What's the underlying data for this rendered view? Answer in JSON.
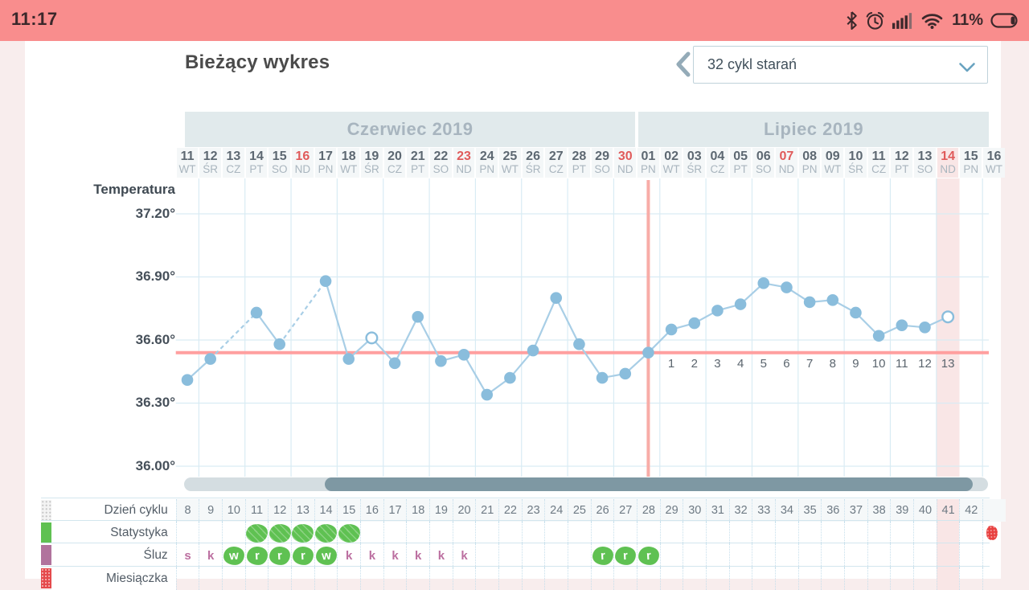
{
  "status_bar": {
    "time": "11:17",
    "battery_percent": "11%",
    "icons": [
      "bluetooth-icon",
      "alarm-icon",
      "signal-strength-icon",
      "wifi-icon",
      "battery-icon"
    ],
    "bg_color": "#f98d8d"
  },
  "header": {
    "title": "Bieżący wykres",
    "back_button": "chevron-left",
    "cycle_selector": {
      "value": "32 cykl starań",
      "icon": "chevron-down-icon"
    }
  },
  "axis": {
    "label": "Temperatura",
    "ticks": [
      "37.20°",
      "36.90°",
      "36.60°",
      "36.30°",
      "36.00°"
    ],
    "tick_values": [
      37.2,
      36.9,
      36.6,
      36.3,
      36.0
    ]
  },
  "chart_data": {
    "type": "line",
    "title": "Bieżący wykres",
    "ylabel": "Temperatura",
    "ylim": [
      36.0,
      37.37
    ],
    "grid": true,
    "coverline_temp": 36.54,
    "ovulation_col": 20,
    "today_col": 33,
    "months": [
      {
        "label": "Czerwiec 2019",
        "start_col": 0,
        "end_col": 19
      },
      {
        "label": "Lipiec 2019",
        "start_col": 20,
        "end_col": 35
      }
    ],
    "columns": [
      {
        "date": "11",
        "dow": "WT",
        "cycle_day": 8,
        "temp": 36.41,
        "mucus": {
          "letter": "s",
          "green": false
        }
      },
      {
        "date": "12",
        "dow": "ŚR",
        "cycle_day": 9,
        "temp": 36.51,
        "mucus": {
          "letter": "k",
          "green": false
        }
      },
      {
        "date": "13",
        "dow": "CZ",
        "cycle_day": 10,
        "temp": null,
        "mucus": {
          "letter": "w",
          "green": true
        }
      },
      {
        "date": "14",
        "dow": "PT",
        "cycle_day": 11,
        "temp": 36.73,
        "stat": "flower",
        "mucus": {
          "letter": "r",
          "green": true
        }
      },
      {
        "date": "15",
        "dow": "SO",
        "cycle_day": 12,
        "temp": 36.58,
        "stat": "flower",
        "mucus": {
          "letter": "r",
          "green": true
        }
      },
      {
        "date": "16",
        "dow": "ND",
        "sun": true,
        "cycle_day": 13,
        "temp": null,
        "stat": "flower",
        "mucus": {
          "letter": "r",
          "green": true
        }
      },
      {
        "date": "17",
        "dow": "PN",
        "cycle_day": 14,
        "temp": 36.88,
        "stat": "flower",
        "mucus": {
          "letter": "w",
          "green": true
        }
      },
      {
        "date": "18",
        "dow": "WT",
        "cycle_day": 15,
        "temp": 36.51,
        "stat": "flower",
        "mucus": {
          "letter": "k",
          "green": false
        }
      },
      {
        "date": "19",
        "dow": "ŚR",
        "cycle_day": 16,
        "temp": 36.61,
        "open": true,
        "mucus": {
          "letter": "k",
          "green": false
        }
      },
      {
        "date": "20",
        "dow": "CZ",
        "cycle_day": 17,
        "temp": 36.49,
        "mucus": {
          "letter": "k",
          "green": false
        }
      },
      {
        "date": "21",
        "dow": "PT",
        "cycle_day": 18,
        "temp": 36.71,
        "mucus": {
          "letter": "k",
          "green": false
        }
      },
      {
        "date": "22",
        "dow": "SO",
        "cycle_day": 19,
        "temp": 36.5,
        "mucus": {
          "letter": "k",
          "green": false
        }
      },
      {
        "date": "23",
        "dow": "ND",
        "sun": true,
        "cycle_day": 20,
        "temp": 36.53,
        "mucus": {
          "letter": "k",
          "green": false
        }
      },
      {
        "date": "24",
        "dow": "PN",
        "cycle_day": 21,
        "temp": 36.34
      },
      {
        "date": "25",
        "dow": "WT",
        "cycle_day": 22,
        "temp": 36.42
      },
      {
        "date": "26",
        "dow": "ŚR",
        "cycle_day": 23,
        "temp": 36.55
      },
      {
        "date": "27",
        "dow": "CZ",
        "cycle_day": 24,
        "temp": 36.8
      },
      {
        "date": "28",
        "dow": "PT",
        "cycle_day": 25,
        "temp": 36.58
      },
      {
        "date": "29",
        "dow": "SO",
        "cycle_day": 26,
        "temp": 36.42,
        "mucus": {
          "letter": "r",
          "green": true
        }
      },
      {
        "date": "30",
        "dow": "ND",
        "sun": true,
        "cycle_day": 27,
        "temp": 36.44,
        "mucus": {
          "letter": "r",
          "green": true
        }
      },
      {
        "date": "01",
        "dow": "PN",
        "cycle_day": 28,
        "temp": 36.54,
        "mucus": {
          "letter": "r",
          "green": true
        }
      },
      {
        "date": "02",
        "dow": "WT",
        "cycle_day": 29,
        "temp": 36.65,
        "high": 1
      },
      {
        "date": "03",
        "dow": "ŚR",
        "cycle_day": 30,
        "temp": 36.68,
        "high": 2
      },
      {
        "date": "04",
        "dow": "CZ",
        "cycle_day": 31,
        "temp": 36.74,
        "high": 3
      },
      {
        "date": "05",
        "dow": "PT",
        "cycle_day": 32,
        "temp": 36.77,
        "high": 4
      },
      {
        "date": "06",
        "dow": "SO",
        "cycle_day": 33,
        "temp": 36.87,
        "high": 5
      },
      {
        "date": "07",
        "dow": "ND",
        "sun": true,
        "cycle_day": 34,
        "temp": 36.85,
        "high": 6
      },
      {
        "date": "08",
        "dow": "PN",
        "cycle_day": 35,
        "temp": 36.78,
        "high": 7
      },
      {
        "date": "09",
        "dow": "WT",
        "cycle_day": 36,
        "temp": 36.79,
        "high": 8
      },
      {
        "date": "10",
        "dow": "ŚR",
        "cycle_day": 37,
        "temp": 36.73,
        "high": 9
      },
      {
        "date": "11",
        "dow": "CZ",
        "cycle_day": 38,
        "temp": 36.62,
        "high": 10
      },
      {
        "date": "12",
        "dow": "PT",
        "cycle_day": 39,
        "temp": 36.67,
        "high": 11
      },
      {
        "date": "13",
        "dow": "SO",
        "cycle_day": 40,
        "temp": 36.66,
        "high": 12
      },
      {
        "date": "14",
        "dow": "ND",
        "sun": true,
        "today": true,
        "cycle_day": 41,
        "temp": 36.71,
        "open": true,
        "high": 13
      },
      {
        "date": "15",
        "dow": "PN",
        "cycle_day": 42,
        "temp": null
      },
      {
        "date": "16",
        "dow": "WT",
        "cycle_day": null,
        "temp": null,
        "stat": "period"
      }
    ]
  },
  "table": {
    "rows": [
      {
        "label": "Dzień cyklu",
        "legend": "dotted",
        "field": "cycle_day"
      },
      {
        "label": "Statystyka",
        "legend": "green",
        "field": "stat"
      },
      {
        "label": "Śluz",
        "legend": "mauve",
        "field": "mucus"
      },
      {
        "label": "Miesiączka",
        "legend": "red",
        "field": "period"
      }
    ]
  },
  "colors": {
    "status_bg": "#f98d8d",
    "page_bg": "#f8eded",
    "grid": "#d9ecf4",
    "line": "#a8cee6",
    "point": "#8abddc",
    "coverline": "#ff9f9f",
    "ovulation_line": "#f8aca7",
    "today_bg": "#f9e6e6",
    "month_bg": "#e1eaec",
    "month_text": "#a8b5bf",
    "sunday_red": "#e05b5b",
    "green": "#5fc152",
    "mauve": "#b1739d",
    "red": "#e8403f",
    "high_number_text": "#5b656e"
  }
}
